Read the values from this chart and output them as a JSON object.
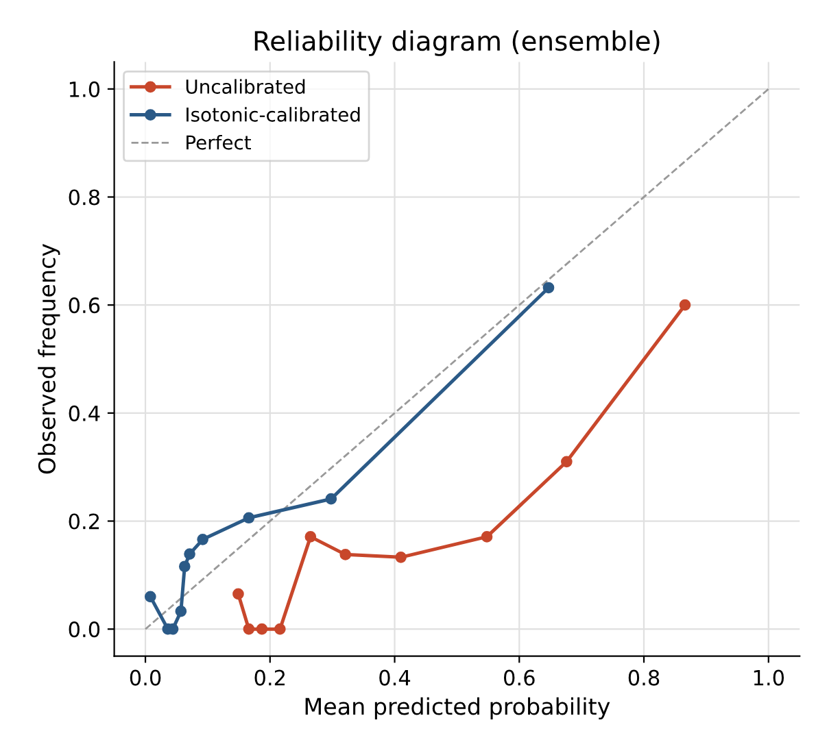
{
  "chart_data": {
    "type": "line",
    "title": "Reliability diagram (ensemble)",
    "xlabel": "Mean predicted probability",
    "ylabel": "Observed frequency",
    "series": [
      {
        "name": "Uncalibrated",
        "color": "#c8472b",
        "marker": "circle",
        "line_style": "solid",
        "x": [
          0.149,
          0.166,
          0.187,
          0.216,
          0.265,
          0.321,
          0.41,
          0.548,
          0.676,
          0.866
        ],
        "values": [
          0.065,
          0,
          0,
          0,
          0.171,
          0.138,
          0.133,
          0.171,
          0.31,
          0.6
        ]
      },
      {
        "name": "Isotonic-calibrated",
        "color": "#2b5a87",
        "marker": "circle",
        "line_style": "solid",
        "x": [
          0.008,
          0.036,
          0.044,
          0.057,
          0.063,
          0.071,
          0.092,
          0.166,
          0.298,
          0.647
        ],
        "values": [
          0.06,
          0,
          0,
          0.033,
          0.116,
          0.139,
          0.166,
          0.206,
          0.241,
          0.632
        ]
      },
      {
        "name": "Perfect",
        "color": "#999999",
        "marker": "none",
        "line_style": "dashed",
        "x": [
          0,
          1
        ],
        "values": [
          0,
          1
        ]
      }
    ],
    "xlim": [
      -0.05,
      1.05
    ],
    "ylim": [
      -0.05,
      1.05
    ],
    "xticks": [
      {
        "value": 0,
        "label": "0.0"
      },
      0.2,
      0.4,
      0.6,
      0.8,
      {
        "value": 1,
        "label": "1.0"
      }
    ],
    "yticks": [
      {
        "value": 0,
        "label": "0.0"
      },
      0.2,
      0.4,
      0.6,
      0.8,
      {
        "value": 1,
        "label": "1.0"
      }
    ],
    "grid": true,
    "legend": "top left"
  }
}
